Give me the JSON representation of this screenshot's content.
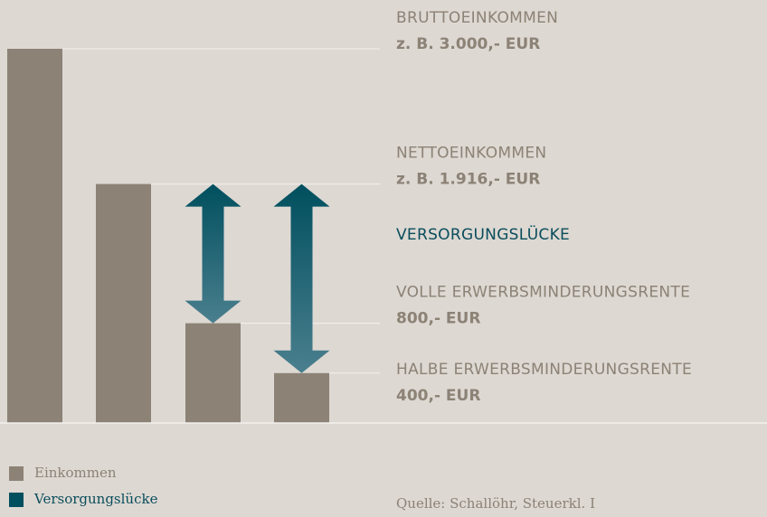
{
  "chart_data": {
    "type": "bar",
    "stacked": true,
    "categories": [
      null,
      null,
      null,
      null
    ],
    "labels": [
      "BRUTTOEINKOMMEN",
      "NETTOEINKOMMEN",
      "VOLLE ERWERBSMINDERUNGSRENTE",
      "HALBE ERWERBSMINDERUNGSRENTE"
    ],
    "annotation": "VERSORGUNGSLÜCKE",
    "series": [
      {
        "name": "Einkommen",
        "color": "#8c8276",
        "values": [
          3000,
          1916,
          800,
          400
        ],
        "value_labels": [
          "z. B. 3.000,- EUR",
          "z. B. 1.916,- EUR",
          "800,- EUR",
          "400,- EUR"
        ]
      },
      {
        "name": "Versorgungslücke",
        "color": "#004f5e",
        "values": [
          null,
          null,
          1116,
          1516
        ]
      }
    ],
    "ylim": [
      0,
      3000
    ],
    "source": "Quelle: Schallöhr, Steuerkl. I"
  }
}
